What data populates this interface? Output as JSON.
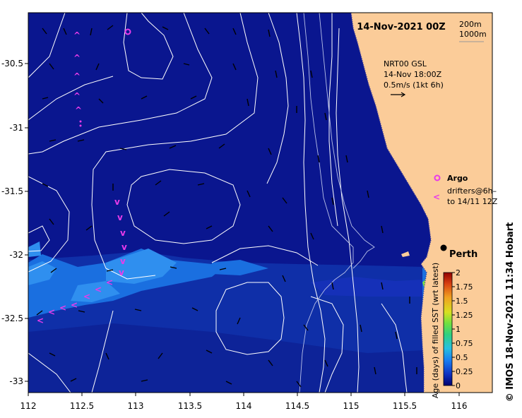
{
  "map": {
    "date_title": "14-Nov-2021 00Z",
    "depth_contours": [
      "200m",
      "1000m"
    ],
    "lon_ticks": [
      "112",
      "112.5",
      "113",
      "113.5",
      "114",
      "114.5",
      "115",
      "115.5",
      "116"
    ],
    "lat_ticks": [
      "-30.5",
      "-31",
      "-31.5",
      "-32",
      "-32.5",
      "-33"
    ],
    "current_source": "NRT00 GSL",
    "current_time": "14-Nov 18:00Z",
    "current_scale": "0.5m/s (1kt 6h)",
    "legend_argo": "Argo",
    "legend_drifters": "drifters@6h–",
    "legend_drifters_to": "to 14/11 12Z",
    "city_label": "Perth",
    "colorbar_title": "Age (days) of filled SST (wrt latest)",
    "colorbar_ticks": [
      "2",
      "1.75",
      "1.5",
      "1.25",
      "1",
      "0.75",
      "0.5",
      "0.25",
      "0"
    ],
    "credit": "© IMOS 18-Nov-2021 11:34 Hobart",
    "colors": {
      "ocean": "#0a168f",
      "land": "#fbcc99",
      "sst_age_mid": "#1a6fe0",
      "sst_age_light": "#2f8fef",
      "marker": "#e83bea",
      "contour": "#ffffff"
    }
  }
}
